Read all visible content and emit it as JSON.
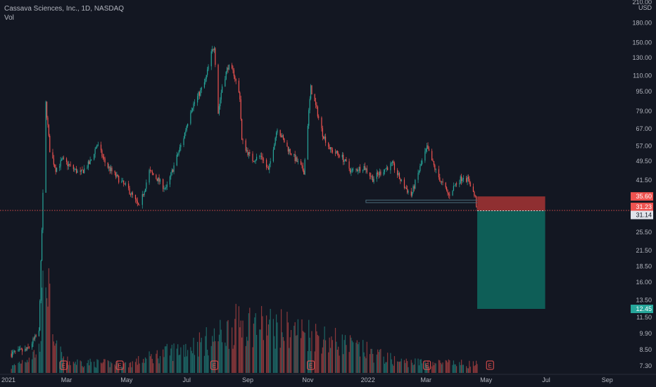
{
  "header": {
    "title": "Cassava Sciences, Inc., 1D, NASDAQ",
    "volume_label": "Vol"
  },
  "colors": {
    "background": "#131722",
    "up": "#26a69a",
    "down": "#ef5350",
    "stop_zone": "#8f2f31",
    "target_zone": "#0e5e57",
    "axis_text": "#b2b5be"
  },
  "chart_data": {
    "type": "candlestick",
    "symbol": "Cassava Sciences, Inc.",
    "interval": "1D",
    "exchange": "NASDAQ",
    "currency": "USD",
    "y_scale": "log",
    "grid": false,
    "y_ticks": [
      "210.00",
      "180.00",
      "150.00",
      "130.00",
      "110.00",
      "95.00",
      "79.00",
      "67.00",
      "57.00",
      "49.50",
      "41.50",
      "35.60",
      "31.23",
      "31.14",
      "25.50",
      "21.50",
      "18.50",
      "16.00",
      "13.50",
      "12.45",
      "11.50",
      "9.90",
      "8.50",
      "7.30"
    ],
    "x_ticks": [
      "2021",
      "Mar",
      "May",
      "Jul",
      "Sep",
      "Nov",
      "2022",
      "Mar",
      "May",
      "Jul",
      "Sep"
    ],
    "price_path": [
      [
        "2021-01-04",
        8.2
      ],
      [
        "2021-01-20",
        8.5
      ],
      [
        "2021-02-01",
        10
      ],
      [
        "2021-02-05",
        36
      ],
      [
        "2021-02-08",
        85
      ],
      [
        "2021-02-12",
        55
      ],
      [
        "2021-02-18",
        46
      ],
      [
        "2021-02-25",
        50
      ],
      [
        "2021-03-05",
        47
      ],
      [
        "2021-03-15",
        44
      ],
      [
        "2021-03-25",
        49
      ],
      [
        "2021-04-01",
        58
      ],
      [
        "2021-04-10",
        48
      ],
      [
        "2021-04-20",
        43
      ],
      [
        "2021-05-03",
        38
      ],
      [
        "2021-05-14",
        32
      ],
      [
        "2021-05-24",
        45
      ],
      [
        "2021-06-01",
        42
      ],
      [
        "2021-06-10",
        38
      ],
      [
        "2021-06-20",
        50
      ],
      [
        "2021-06-28",
        62
      ],
      [
        "2021-07-05",
        80
      ],
      [
        "2021-07-15",
        95
      ],
      [
        "2021-07-20",
        105
      ],
      [
        "2021-07-26",
        135
      ],
      [
        "2021-07-29",
        146
      ],
      [
        "2021-08-02",
        78
      ],
      [
        "2021-08-06",
        100
      ],
      [
        "2021-08-12",
        120
      ],
      [
        "2021-08-18",
        112
      ],
      [
        "2021-08-24",
        90
      ],
      [
        "2021-08-26",
        60
      ],
      [
        "2021-09-05",
        50
      ],
      [
        "2021-09-15",
        52
      ],
      [
        "2021-09-22",
        45
      ],
      [
        "2021-10-01",
        68
      ],
      [
        "2021-10-10",
        57
      ],
      [
        "2021-10-20",
        50
      ],
      [
        "2021-10-28",
        45
      ],
      [
        "2021-11-04",
        98
      ],
      [
        "2021-11-10",
        80
      ],
      [
        "2021-11-16",
        64
      ],
      [
        "2021-11-24",
        55
      ],
      [
        "2021-12-05",
        52
      ],
      [
        "2021-12-15",
        45
      ],
      [
        "2021-12-28",
        47
      ],
      [
        "2022-01-06",
        42
      ],
      [
        "2022-01-18",
        46
      ],
      [
        "2022-01-26",
        48
      ],
      [
        "2022-02-05",
        40
      ],
      [
        "2022-02-14",
        36
      ],
      [
        "2022-02-24",
        48
      ],
      [
        "2022-03-02",
        56
      ],
      [
        "2022-03-12",
        44
      ],
      [
        "2022-03-24",
        36
      ],
      [
        "2022-03-31",
        40
      ],
      [
        "2022-04-08",
        43
      ],
      [
        "2022-04-14",
        41
      ],
      [
        "2022-04-20",
        35
      ],
      [
        "2022-04-22",
        31.2
      ]
    ],
    "volume_markers": [
      [
        "2021-01-04",
        2
      ],
      [
        "2021-02-01",
        8
      ],
      [
        "2021-02-08",
        40
      ],
      [
        "2021-02-15",
        10
      ],
      [
        "2021-03-01",
        4
      ],
      [
        "2021-05-01",
        3
      ],
      [
        "2021-07-29",
        12
      ],
      [
        "2021-08-26",
        18
      ],
      [
        "2021-11-04",
        14
      ],
      [
        "2022-02-01",
        4
      ],
      [
        "2022-04-22",
        3
      ]
    ],
    "events": [
      {
        "label": "E",
        "date": "2021-02-26"
      },
      {
        "label": "E",
        "date": "2021-04-24"
      },
      {
        "label": "E",
        "date": "2021-07-29"
      },
      {
        "label": "E",
        "date": "2021-11-04"
      },
      {
        "label": "E",
        "date": "2022-03-02"
      },
      {
        "label": "E",
        "date": "2022-05-05"
      }
    ],
    "support_zone": {
      "from": "2021-12-30",
      "to": "2022-04-26",
      "low": 33.6,
      "high": 34.4
    },
    "current_price": 31.23,
    "position": {
      "type": "short",
      "entry": 31.14,
      "stop": 35.6,
      "target": 12.45,
      "from": "2022-04-22",
      "to": "2022-06-30"
    },
    "price_labels": [
      {
        "value": "35.60",
        "kind": "stop"
      },
      {
        "value": "31.23",
        "kind": "current"
      },
      {
        "value": "31.14",
        "kind": "entry"
      },
      {
        "value": "12.45",
        "kind": "target"
      }
    ]
  }
}
